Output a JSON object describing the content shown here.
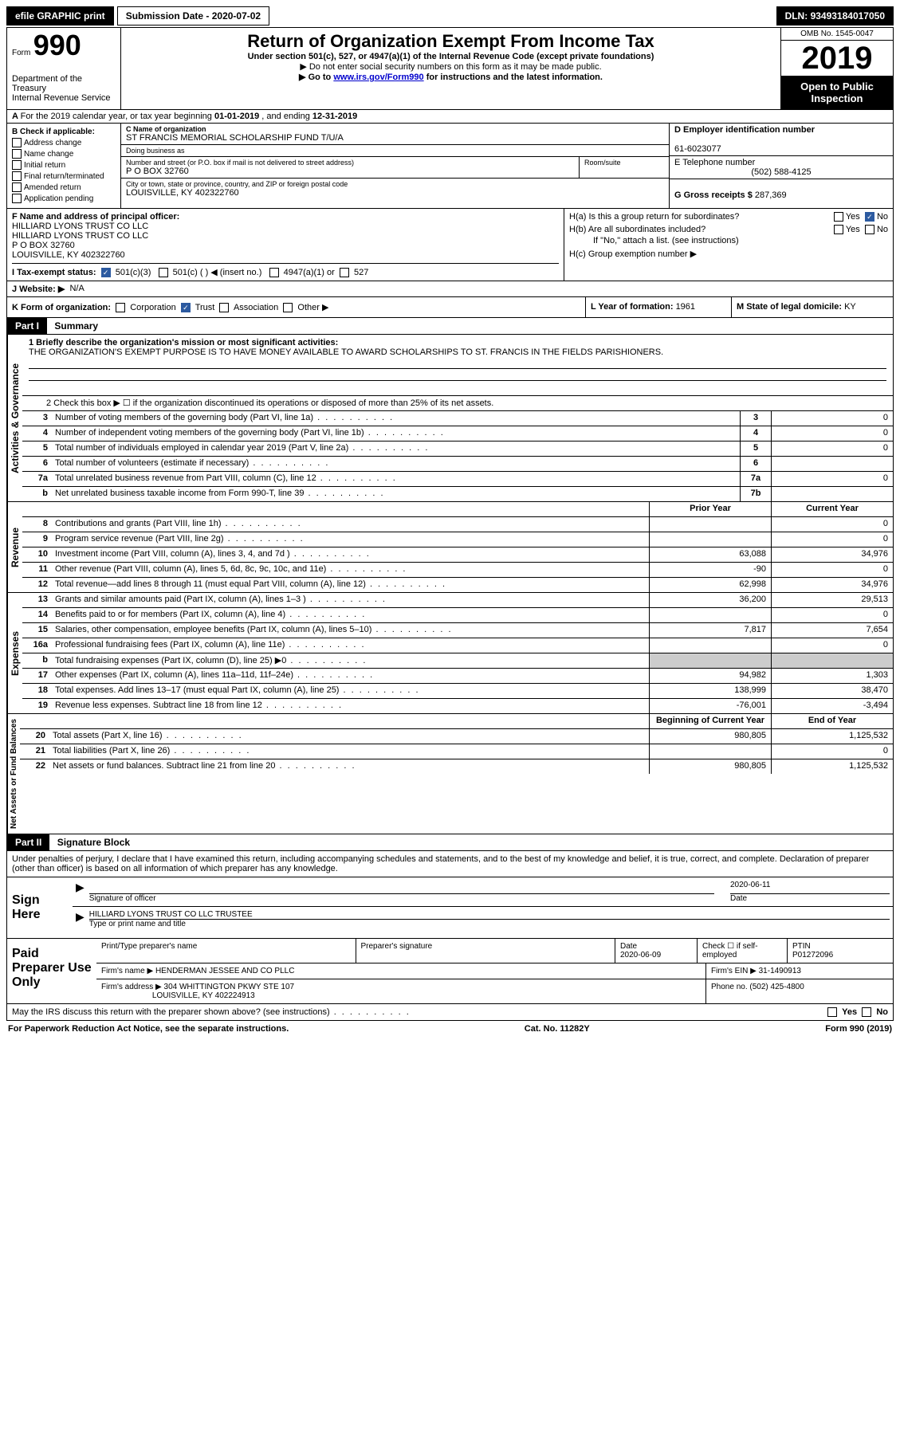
{
  "topbar": {
    "efile": "efile GRAPHIC print",
    "submission_label": "Submission Date - ",
    "submission_date": "2020-07-02",
    "dln_label": "DLN: ",
    "dln": "93493184017050"
  },
  "header": {
    "form_prefix": "Form",
    "form_number": "990",
    "dept": "Department of the Treasury\nInternal Revenue Service",
    "title": "Return of Organization Exempt From Income Tax",
    "sub1": "Under section 501(c), 527, or 4947(a)(1) of the Internal Revenue Code (except private foundations)",
    "sub2": "▶ Do not enter social security numbers on this form as it may be made public.",
    "sub3_pre": "▶ Go to ",
    "sub3_link": "www.irs.gov/Form990",
    "sub3_post": " for instructions and the latest information.",
    "omb": "OMB No. 1545-0047",
    "year": "2019",
    "inspect": "Open to Public Inspection"
  },
  "row_a": {
    "text_pre": "For the 2019 calendar year, or tax year beginning ",
    "begin": "01-01-2019",
    "mid": " , and ending ",
    "end": "12-31-2019"
  },
  "box_b": {
    "label": "B Check if applicable:",
    "opts": [
      "Address change",
      "Name change",
      "Initial return",
      "Final return/terminated",
      "Amended return",
      "Application pending"
    ]
  },
  "box_c": {
    "name_label": "C Name of organization",
    "name": "ST FRANCIS MEMORIAL SCHOLARSHIP FUND T/U/A",
    "dba_label": "Doing business as",
    "dba": "",
    "addr_label": "Number and street (or P.O. box if mail is not delivered to street address)",
    "room_label": "Room/suite",
    "addr": "P O BOX 32760",
    "city_label": "City or town, state or province, country, and ZIP or foreign postal code",
    "city": "LOUISVILLE, KY  402322760"
  },
  "box_d": {
    "label": "D Employer identification number",
    "ein": "61-6023077"
  },
  "box_e": {
    "label": "E Telephone number",
    "phone": "(502) 588-4125"
  },
  "box_g": {
    "label": "G Gross receipts $ ",
    "amount": "287,369"
  },
  "box_f": {
    "label": "F Name and address of principal officer:",
    "lines": [
      "HILLIARD LYONS TRUST CO LLC",
      "HILLIARD LYONS TRUST CO LLC",
      "P O BOX 32760",
      "LOUISVILLE, KY  402322760"
    ]
  },
  "box_h": {
    "ha": "H(a)  Is this a group return for subordinates?",
    "hb": "H(b)  Are all subordinates included?",
    "hb_note": "If \"No,\" attach a list. (see instructions)",
    "hc": "H(c)  Group exemption number ▶",
    "yes": "Yes",
    "no": "No"
  },
  "row_i": {
    "label": "I  Tax-exempt status:",
    "opt1": "501(c)(3)",
    "opt2": "501(c) (   ) ◀ (insert no.)",
    "opt3": "4947(a)(1) or",
    "opt4": "527"
  },
  "row_j": {
    "label": "J  Website: ▶",
    "val": "N/A"
  },
  "row_k": {
    "label": "K Form of organization:",
    "opts": [
      "Corporation",
      "Trust",
      "Association",
      "Other ▶"
    ],
    "l_label": "L Year of formation: ",
    "l_val": "1961",
    "m_label": "M State of legal domicile: ",
    "m_val": "KY"
  },
  "part1": {
    "header": "Part I",
    "title": "Summary",
    "q1_label": "1  Briefly describe the organization's mission or most significant activities:",
    "q1_text": "THE ORGANIZATION'S EXEMPT PURPOSE IS TO HAVE MONEY AVAILABLE TO AWARD SCHOLARSHIPS TO ST. FRANCIS IN THE FIELDS PARISHIONERS.",
    "q2": "2   Check this box ▶ ☐ if the organization discontinued its operations or disposed of more than 25% of its net assets."
  },
  "governance_label": "Activities & Governance",
  "revenue_label": "Revenue",
  "expenses_label": "Expenses",
  "netassets_label": "Net Assets or Fund Balances",
  "rows_gov": [
    {
      "n": "3",
      "d": "Number of voting members of the governing body (Part VI, line 1a)",
      "box": "3",
      "v": "0"
    },
    {
      "n": "4",
      "d": "Number of independent voting members of the governing body (Part VI, line 1b)",
      "box": "4",
      "v": "0"
    },
    {
      "n": "5",
      "d": "Total number of individuals employed in calendar year 2019 (Part V, line 2a)",
      "box": "5",
      "v": "0"
    },
    {
      "n": "6",
      "d": "Total number of volunteers (estimate if necessary)",
      "box": "6",
      "v": ""
    },
    {
      "n": "7a",
      "d": "Total unrelated business revenue from Part VIII, column (C), line 12",
      "box": "7a",
      "v": "0"
    },
    {
      "n": "b",
      "d": "Net unrelated business taxable income from Form 990-T, line 39",
      "box": "7b",
      "v": ""
    }
  ],
  "col_headers": {
    "prior": "Prior Year",
    "current": "Current Year"
  },
  "rows_rev": [
    {
      "n": "8",
      "d": "Contributions and grants (Part VIII, line 1h)",
      "a": "",
      "b": "0"
    },
    {
      "n": "9",
      "d": "Program service revenue (Part VIII, line 2g)",
      "a": "",
      "b": "0"
    },
    {
      "n": "10",
      "d": "Investment income (Part VIII, column (A), lines 3, 4, and 7d )",
      "a": "63,088",
      "b": "34,976"
    },
    {
      "n": "11",
      "d": "Other revenue (Part VIII, column (A), lines 5, 6d, 8c, 9c, 10c, and 11e)",
      "a": "-90",
      "b": "0"
    },
    {
      "n": "12",
      "d": "Total revenue—add lines 8 through 11 (must equal Part VIII, column (A), line 12)",
      "a": "62,998",
      "b": "34,976"
    }
  ],
  "rows_exp": [
    {
      "n": "13",
      "d": "Grants and similar amounts paid (Part IX, column (A), lines 1–3 )",
      "a": "36,200",
      "b": "29,513"
    },
    {
      "n": "14",
      "d": "Benefits paid to or for members (Part IX, column (A), line 4)",
      "a": "",
      "b": "0"
    },
    {
      "n": "15",
      "d": "Salaries, other compensation, employee benefits (Part IX, column (A), lines 5–10)",
      "a": "7,817",
      "b": "7,654"
    },
    {
      "n": "16a",
      "d": "Professional fundraising fees (Part IX, column (A), line 11e)",
      "a": "",
      "b": "0"
    },
    {
      "n": "b",
      "d": "Total fundraising expenses (Part IX, column (D), line 25) ▶0",
      "a": "shaded",
      "b": "shaded"
    },
    {
      "n": "17",
      "d": "Other expenses (Part IX, column (A), lines 11a–11d, 11f–24e)",
      "a": "94,982",
      "b": "1,303"
    },
    {
      "n": "18",
      "d": "Total expenses. Add lines 13–17 (must equal Part IX, column (A), line 25)",
      "a": "138,999",
      "b": "38,470"
    },
    {
      "n": "19",
      "d": "Revenue less expenses. Subtract line 18 from line 12",
      "a": "-76,001",
      "b": "-3,494"
    }
  ],
  "col_headers2": {
    "begin": "Beginning of Current Year",
    "end": "End of Year"
  },
  "rows_net": [
    {
      "n": "20",
      "d": "Total assets (Part X, line 16)",
      "a": "980,805",
      "b": "1,125,532"
    },
    {
      "n": "21",
      "d": "Total liabilities (Part X, line 26)",
      "a": "",
      "b": "0"
    },
    {
      "n": "22",
      "d": "Net assets or fund balances. Subtract line 21 from line 20",
      "a": "980,805",
      "b": "1,125,532"
    }
  ],
  "part2": {
    "header": "Part II",
    "title": "Signature Block",
    "perjury": "Under penalties of perjury, I declare that I have examined this return, including accompanying schedules and statements, and to the best of my knowledge and belief, it is true, correct, and complete. Declaration of preparer (other than officer) is based on all information of which preparer has any knowledge."
  },
  "sign": {
    "label": "Sign Here",
    "sig_label": "Signature of officer",
    "date_label": "Date",
    "date": "2020-06-11",
    "name": "HILLIARD LYONS TRUST CO LLC  TRUSTEE",
    "name_label": "Type or print name and title"
  },
  "paid": {
    "label": "Paid Preparer Use Only",
    "r1": {
      "c1_label": "Print/Type preparer's name",
      "c1": "",
      "c2_label": "Preparer's signature",
      "c2": "",
      "c3_label": "Date",
      "c3": "2020-06-09",
      "c4_label": "Check ☐ if self-employed",
      "c5_label": "PTIN",
      "c5": "P01272096"
    },
    "r2": {
      "label": "Firm's name    ▶",
      "val": "HENDERMAN JESSEE AND CO PLLC",
      "ein_label": "Firm's EIN ▶",
      "ein": "31-1490913"
    },
    "r3": {
      "label": "Firm's address ▶",
      "val": "304 WHITTINGTON PKWY STE 107",
      "city": "LOUISVILLE, KY  402224913",
      "phone_label": "Phone no.",
      "phone": "(502) 425-4800"
    }
  },
  "discuss": {
    "q": "May the IRS discuss this return with the preparer shown above? (see instructions)",
    "yes": "Yes",
    "no": "No"
  },
  "footer": {
    "left": "For Paperwork Reduction Act Notice, see the separate instructions.",
    "mid": "Cat. No. 11282Y",
    "right": "Form 990 (2019)"
  }
}
